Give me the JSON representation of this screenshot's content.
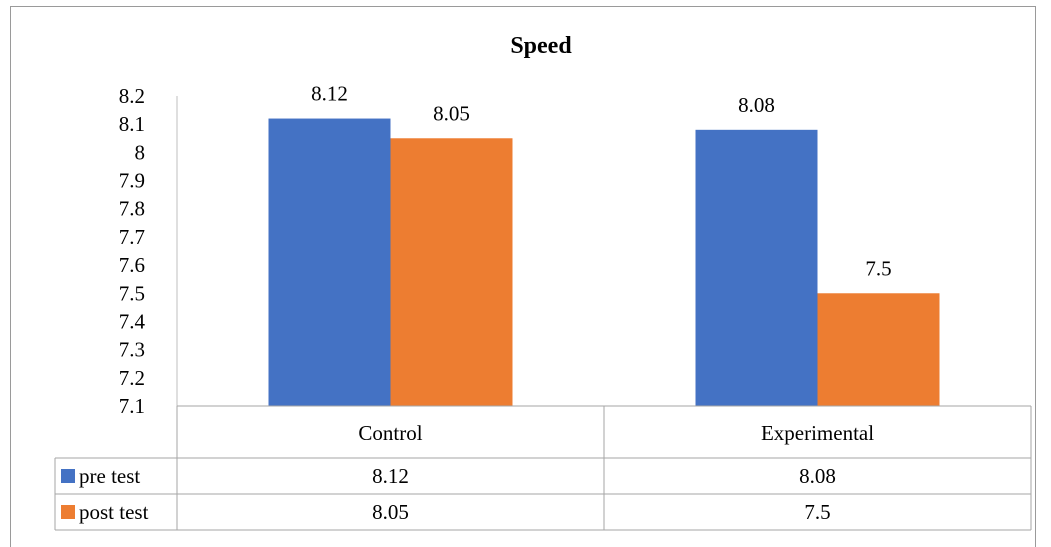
{
  "chart_data": {
    "type": "bar",
    "title": "Speed",
    "categories": [
      "Control",
      "Experimental"
    ],
    "series": [
      {
        "name": "pre test",
        "values": [
          8.12,
          8.08
        ],
        "labels": [
          "8.12",
          "8.08"
        ],
        "color": "#4472C4"
      },
      {
        "name": "post test",
        "values": [
          8.05,
          7.5
        ],
        "labels": [
          "8.05",
          "7.5"
        ],
        "color": "#ED7D31"
      }
    ],
    "ylim": [
      7.1,
      8.2
    ],
    "yticks": [
      "8.2",
      "8.1",
      "8",
      "7.9",
      "7.8",
      "7.7",
      "7.6",
      "7.5",
      "7.4",
      "7.3",
      "7.2",
      "7.1"
    ],
    "data_table": true,
    "legend": "data-table",
    "grid": false
  }
}
